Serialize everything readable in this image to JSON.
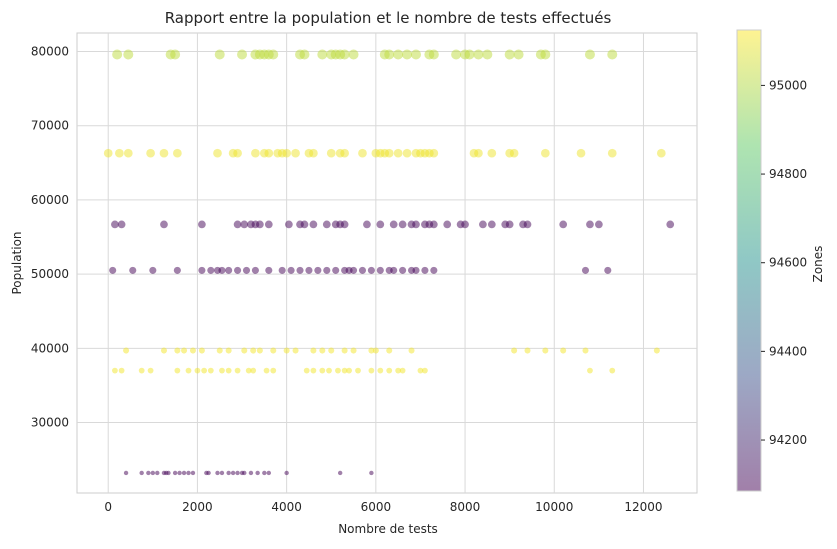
{
  "chart_data": {
    "type": "scatter",
    "title": "Rapport entre la population et le nombre de tests effectués",
    "xlabel": "Nombre de tests",
    "ylabel": "Population",
    "xlim": [
      -700,
      13200
    ],
    "ylim": [
      20500,
      82500
    ],
    "xticks": [
      0,
      2000,
      4000,
      6000,
      8000,
      10000,
      12000
    ],
    "xtick_labels": [
      "0",
      "2000",
      "4000",
      "6000",
      "8000",
      "10000",
      "12000"
    ],
    "yticks": [
      30000,
      40000,
      50000,
      60000,
      70000,
      80000
    ],
    "ytick_labels": [
      "30000",
      "40000",
      "50000",
      "60000",
      "70000",
      "80000"
    ],
    "grid": true,
    "colorbar": {
      "label": "Zones",
      "range": [
        94085,
        95125
      ],
      "ticks": [
        94200,
        94400,
        94600,
        94800,
        95000
      ],
      "tick_labels": [
        "94200",
        "94400",
        "94600",
        "94800",
        "95000"
      ],
      "colormap": "viridis"
    },
    "marker_alpha": 0.5,
    "series": [
      {
        "population": 79600,
        "zone": 95020,
        "tests": [
          200,
          450,
          1400,
          1500,
          2500,
          3000,
          3300,
          3400,
          3500,
          3600,
          3700,
          4300,
          4400,
          4800,
          5000,
          5100,
          5200,
          5300,
          5500,
          6200,
          6300,
          6500,
          6700,
          6900,
          7200,
          7300,
          7800,
          8000,
          8100,
          8300,
          8500,
          9000,
          9200,
          9700,
          9800,
          10800,
          11300
        ]
      },
      {
        "population": 66300,
        "zone": 95100,
        "tests": [
          0,
          250,
          450,
          950,
          1250,
          1550,
          2450,
          2800,
          2900,
          3300,
          3500,
          3600,
          3800,
          3900,
          4000,
          4200,
          4500,
          4600,
          5000,
          5200,
          5300,
          5700,
          6000,
          6100,
          6200,
          6300,
          6500,
          6700,
          6900,
          7000,
          7100,
          7200,
          7300,
          8200,
          8300,
          8600,
          9000,
          9100,
          9800,
          10600,
          11300,
          12400
        ]
      },
      {
        "population": 56700,
        "zone": 94100,
        "tests": [
          150,
          300,
          1250,
          2100,
          2900,
          3050,
          3200,
          3300,
          3400,
          3600,
          4050,
          4300,
          4400,
          4600,
          4900,
          5100,
          5200,
          5300,
          5800,
          6100,
          6400,
          6600,
          6800,
          6900,
          7100,
          7200,
          7300,
          7600,
          7900,
          8000,
          8400,
          8600,
          8900,
          9000,
          9300,
          9400,
          10200,
          10800,
          11000,
          12600
        ]
      },
      {
        "population": 50500,
        "zone": 94095,
        "tests": [
          100,
          550,
          1000,
          1550,
          2100,
          2300,
          2450,
          2550,
          2700,
          2900,
          3100,
          3300,
          3600,
          3900,
          4100,
          4300,
          4500,
          4700,
          4900,
          5100,
          5300,
          5400,
          5500,
          5700,
          5900,
          6100,
          6300,
          6400,
          6600,
          6800,
          6900,
          7100,
          7300,
          10700,
          11200
        ]
      },
      {
        "population": 39700,
        "zone": 95110,
        "tests": [
          400,
          1250,
          1550,
          1700,
          1900,
          2100,
          2500,
          2700,
          3050,
          3250,
          3400,
          3700,
          4000,
          4200,
          4600,
          4800,
          5000,
          5300,
          5500,
          5900,
          6000,
          6300,
          6800,
          9100,
          9400,
          9800,
          10200,
          10700,
          12300
        ]
      },
      {
        "population": 37000,
        "zone": 95105,
        "tests": [
          150,
          300,
          750,
          950,
          1550,
          1800,
          2000,
          2150,
          2300,
          2550,
          2700,
          2900,
          3150,
          3250,
          3550,
          3700,
          4450,
          4600,
          4800,
          4950,
          5150,
          5300,
          5400,
          5600,
          5900,
          6100,
          6300,
          6500,
          6600,
          7000,
          7100,
          10800,
          11300
        ]
      },
      {
        "population": 23200,
        "zone": 94090,
        "tests": [
          400,
          750,
          900,
          1000,
          1100,
          1250,
          1300,
          1350,
          1500,
          1600,
          1700,
          1800,
          1900,
          2200,
          2250,
          2450,
          2550,
          2700,
          2800,
          2900,
          3000,
          3050,
          3200,
          3350,
          3500,
          3600,
          4000,
          5200,
          5900
        ]
      }
    ]
  }
}
